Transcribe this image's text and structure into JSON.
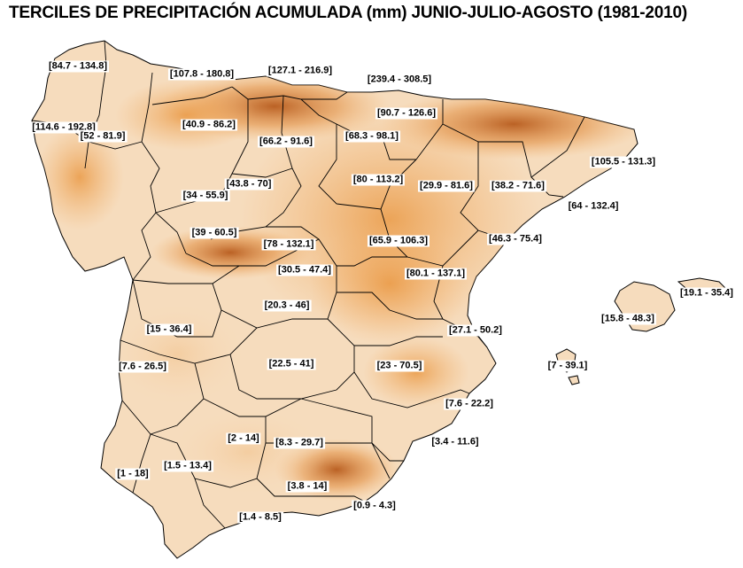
{
  "title": "TERCILES DE PRECIPITACIÓN ACUMULADA (mm) JUNIO-JULIO-AGOSTO (1981-2010)",
  "colors": {
    "background": "#ffffff",
    "map_light": "#fbe9d6",
    "map_mid": "#f2b06a",
    "map_dark": "#c85a10",
    "map_darkest": "#7a2e06",
    "border": "#000000"
  },
  "provinces": [
    {
      "id": "a-coruna",
      "range": "[84.7 - 134.8]"
    },
    {
      "id": "lugo",
      "range": "[107.8 - 180.8]"
    },
    {
      "id": "asturias",
      "range": "[127.1 - 216.9]"
    },
    {
      "id": "cantabria",
      "range": "[239.4 - 308.5]"
    },
    {
      "id": "pontevedra",
      "range": "[114.6 - 192.8]"
    },
    {
      "id": "ourense",
      "range": "[52 - 81.9]"
    },
    {
      "id": "leon",
      "range": "[40.9 - 86.2]"
    },
    {
      "id": "burgos",
      "range": "[66.2 - 91.6]"
    },
    {
      "id": "la-rioja",
      "range": "[68.3 - 98.1]"
    },
    {
      "id": "navarra",
      "range": "[90.7 - 126.6]"
    },
    {
      "id": "girona",
      "range": "[105.5 - 131.3]"
    },
    {
      "id": "palencia",
      "range": "[43.8 - 70]"
    },
    {
      "id": "soria",
      "range": "[80 - 113.2]"
    },
    {
      "id": "zaragoza",
      "range": "[29.9 - 81.6]"
    },
    {
      "id": "lleida",
      "range": "[38.2 - 71.6]"
    },
    {
      "id": "zamora",
      "range": "[34 - 55.9]"
    },
    {
      "id": "barcelona-tarragona",
      "range": "[64 - 132.4]"
    },
    {
      "id": "salamanca",
      "range": "[39 - 60.5]"
    },
    {
      "id": "segovia",
      "range": "[78 - 132.1]"
    },
    {
      "id": "guadalajara",
      "range": "[65.9 - 106.3]"
    },
    {
      "id": "castellon",
      "range": "[46.3 - 75.4]"
    },
    {
      "id": "avila",
      "range": "[30.5 - 47.4]"
    },
    {
      "id": "cuenca",
      "range": "[80.1 - 137.1]"
    },
    {
      "id": "menorca",
      "range": "[19.1 - 35.4]"
    },
    {
      "id": "toledo",
      "range": "[20.3 - 46]"
    },
    {
      "id": "mallorca",
      "range": "[15.8 - 48.3]"
    },
    {
      "id": "caceres",
      "range": "[15 - 36.4]"
    },
    {
      "id": "valencia",
      "range": "[27.1 - 50.2]"
    },
    {
      "id": "badajoz",
      "range": "[7.6 - 26.5]"
    },
    {
      "id": "ciudad-real",
      "range": "[22.5 - 41]"
    },
    {
      "id": "albacete",
      "range": "[23 - 70.5]"
    },
    {
      "id": "ibiza",
      "range": "[7 - 39.1]"
    },
    {
      "id": "alicante",
      "range": "[7.6 - 22.2]"
    },
    {
      "id": "cordoba",
      "range": "[2 - 14]"
    },
    {
      "id": "jaen",
      "range": "[8.3 - 29.7]"
    },
    {
      "id": "murcia",
      "range": "[3.4 - 11.6]"
    },
    {
      "id": "huelva",
      "range": "[1 - 18]"
    },
    {
      "id": "sevilla",
      "range": "[1.5 - 13.4]"
    },
    {
      "id": "granada",
      "range": "[3.8 - 14]"
    },
    {
      "id": "almeria",
      "range": "[0.9 - 4.3]"
    },
    {
      "id": "malaga-cadiz",
      "range": "[1.4 - 8.5]"
    }
  ]
}
